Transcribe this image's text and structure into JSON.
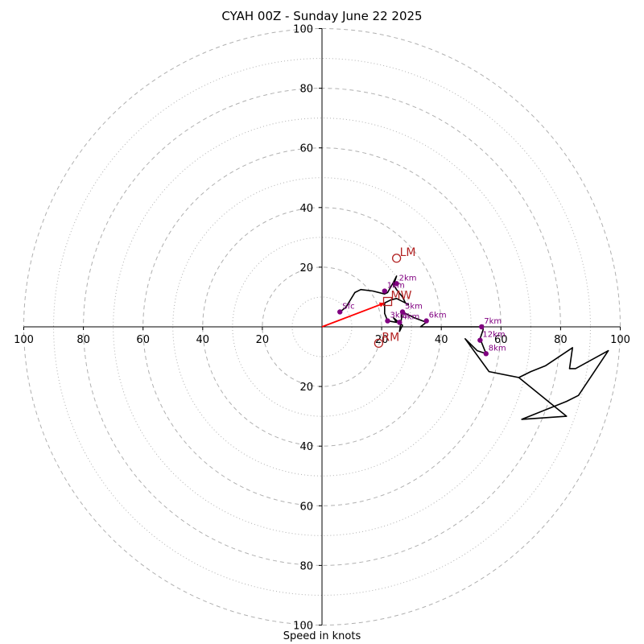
{
  "chart_data": {
    "type": "hodograph",
    "title": "CYAH 00Z - Sunday June 22 2025",
    "xlabel": "Speed in knots",
    "ylabel": "",
    "range": [
      -100,
      100
    ],
    "ring_major": [
      20,
      40,
      60,
      80,
      100
    ],
    "ring_minor": [
      10,
      30,
      50,
      70,
      90
    ],
    "ticks": {
      "x": [
        {
          "v": -100,
          "label": "100"
        },
        {
          "v": -80,
          "label": "80"
        },
        {
          "v": -60,
          "label": "60"
        },
        {
          "v": -40,
          "label": "40"
        },
        {
          "v": -20,
          "label": "20"
        },
        {
          "v": 20,
          "label": "20"
        },
        {
          "v": 40,
          "label": "40"
        },
        {
          "v": 60,
          "label": "60"
        },
        {
          "v": 80,
          "label": "80"
        },
        {
          "v": 100,
          "label": "100"
        }
      ],
      "y": [
        {
          "v": 100,
          "label": "100"
        },
        {
          "v": 80,
          "label": "80"
        },
        {
          "v": 60,
          "label": "60"
        },
        {
          "v": 40,
          "label": "40"
        },
        {
          "v": 20,
          "label": "20"
        },
        {
          "v": -20,
          "label": "20"
        },
        {
          "v": -40,
          "label": "40"
        },
        {
          "v": -60,
          "label": "60"
        },
        {
          "v": -80,
          "label": "80"
        },
        {
          "v": -100,
          "label": "100"
        }
      ]
    },
    "trace": [
      [
        6,
        5
      ],
      [
        8,
        6.5
      ],
      [
        11,
        11.5
      ],
      [
        13,
        12.5
      ],
      [
        17,
        12
      ],
      [
        21,
        11
      ],
      [
        22,
        11.5
      ],
      [
        24,
        15
      ],
      [
        25,
        17
      ],
      [
        24,
        14
      ],
      [
        25,
        12.5
      ],
      [
        27,
        10
      ],
      [
        28,
        8
      ],
      [
        29,
        7.5
      ],
      [
        25,
        9.5
      ],
      [
        23,
        9
      ],
      [
        21,
        8
      ],
      [
        21,
        4.5
      ],
      [
        22,
        2
      ],
      [
        25,
        1.5
      ],
      [
        24,
        3
      ],
      [
        27,
        0.5
      ],
      [
        26,
        -1.5
      ],
      [
        27,
        5
      ],
      [
        31,
        3
      ],
      [
        35,
        1.5
      ],
      [
        33,
        0
      ],
      [
        44,
        0
      ],
      [
        48,
        0
      ],
      [
        53,
        0
      ],
      [
        54,
        0.5
      ],
      [
        54,
        -1
      ],
      [
        53,
        -4
      ],
      [
        55,
        -9
      ],
      [
        52,
        -8
      ],
      [
        48,
        -4
      ],
      [
        56,
        -15
      ],
      [
        66,
        -17
      ],
      [
        70,
        -15
      ],
      [
        75,
        -13
      ],
      [
        84,
        -7
      ],
      [
        83,
        -14
      ],
      [
        85,
        -14
      ],
      [
        96,
        -8
      ],
      [
        86,
        -23
      ],
      [
        82,
        -25
      ],
      [
        67,
        -31
      ],
      [
        82,
        -30
      ],
      [
        66,
        -17
      ]
    ],
    "height_markers": [
      {
        "label": "Sfc",
        "x": 6,
        "y": 5
      },
      {
        "label": "1km",
        "x": 21,
        "y": 12
      },
      {
        "label": "2km",
        "x": 25,
        "y": 14.5
      },
      {
        "label": "3km",
        "x": 22,
        "y": 2
      },
      {
        "label": "4km",
        "x": 26,
        "y": 1.5
      },
      {
        "label": "5km",
        "x": 27,
        "y": 5
      },
      {
        "label": "6km",
        "x": 35,
        "y": 2
      },
      {
        "label": "7km",
        "x": 53.5,
        "y": 0
      },
      {
        "label": "8km",
        "x": 55,
        "y": -9
      },
      {
        "label": "12km",
        "x": 53,
        "y": -4.5
      }
    ],
    "storm_motion": {
      "x": 21,
      "y": 8
    },
    "vectors": [
      {
        "label": "LM",
        "x": 25,
        "y": 23,
        "marker": "circle"
      },
      {
        "label": "MW",
        "x": 22,
        "y": 8.5,
        "marker": "square"
      },
      {
        "label": "RM",
        "x": 19,
        "y": -5.5,
        "marker": "circle"
      }
    ],
    "colors": {
      "trace": "#000000",
      "height_marker": "#800080",
      "vector": "#b22222",
      "storm_motion": "#ff0000",
      "grid": "#b0b0b0"
    }
  }
}
